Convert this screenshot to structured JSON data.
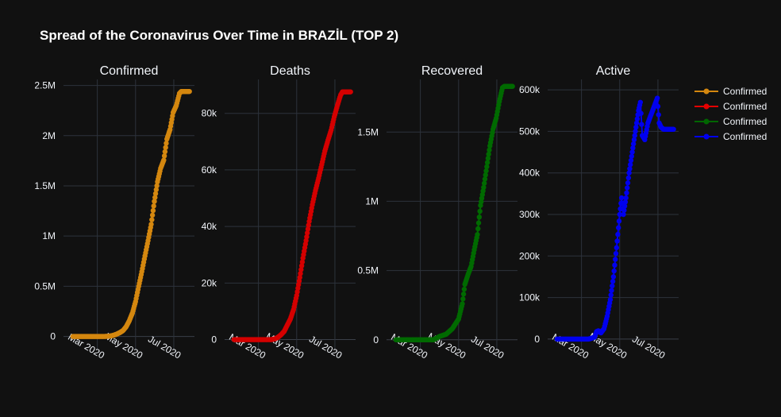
{
  "title": "Spread of the Coronavirus Over Time in BRAZİL (TOP 2)",
  "legend": {
    "placement": "top-right",
    "entries": [
      {
        "label": "Confirmed",
        "color": "#d4870f"
      },
      {
        "label": "Confirmed",
        "color": "#e50000"
      },
      {
        "label": "Confirmed",
        "color": "#006600"
      },
      {
        "label": "Confirmed",
        "color": "#0000ee"
      }
    ]
  },
  "chart_data": [
    {
      "type": "line",
      "title": "Confirmed",
      "color": "#d4870f",
      "x_range": [
        "2020-01-07",
        "2020-08-03"
      ],
      "ylim": [
        -130000,
        2560000
      ],
      "x_ticks": [
        {
          "date": "2020-03-01",
          "label": "Mar 2020"
        },
        {
          "date": "2020-05-01",
          "label": "May 2020"
        },
        {
          "date": "2020-07-01",
          "label": "Jul 2020"
        }
      ],
      "y_ticks": [
        {
          "value": 0,
          "label": "0"
        },
        {
          "value": 500000,
          "label": "0.5M"
        },
        {
          "value": 1000000,
          "label": "1M"
        },
        {
          "value": 1500000,
          "label": "1.5M"
        },
        {
          "value": 2000000,
          "label": "2M"
        },
        {
          "value": 2500000,
          "label": "2.5M"
        }
      ],
      "grid": true,
      "series": [
        {
          "x_start": "2020-01-22",
          "x_end": "2020-07-26",
          "points": [
            [
              0,
              0
            ],
            [
              40,
              0
            ],
            [
              45,
              4
            ],
            [
              50,
              200
            ],
            [
              55,
              900
            ],
            [
              60,
              4600
            ],
            [
              65,
              12000
            ],
            [
              70,
              23400
            ],
            [
              75,
              38600
            ],
            [
              80,
              58500
            ],
            [
              85,
              96600
            ],
            [
              90,
              156000
            ],
            [
              95,
              233000
            ],
            [
              100,
              347000
            ],
            [
              105,
              499000
            ],
            [
              110,
              645000
            ],
            [
              115,
              802000
            ],
            [
              120,
              955000
            ],
            [
              125,
              1117000
            ],
            [
              130,
              1345000
            ],
            [
              135,
              1540000
            ],
            [
              140,
              1674000
            ],
            [
              145,
              1756000
            ],
            [
              150,
              1966000
            ],
            [
              155,
              2060000
            ],
            [
              160,
              2231000
            ],
            [
              165,
              2300000
            ],
            [
              170,
              2420000
            ],
            [
              173,
              2440000
            ],
            [
              186,
              2440000
            ]
          ]
        }
      ]
    },
    {
      "type": "line",
      "title": "Deaths",
      "color": "#d40000",
      "x_range": [
        "2020-01-07",
        "2020-08-03"
      ],
      "ylim": [
        -3500,
        92000
      ],
      "x_ticks": [
        {
          "date": "2020-03-01",
          "label": "Mar 2020"
        },
        {
          "date": "2020-05-01",
          "label": "May 2020"
        },
        {
          "date": "2020-07-01",
          "label": "Jul 2020"
        }
      ],
      "y_ticks": [
        {
          "value": 0,
          "label": "0"
        },
        {
          "value": 20000,
          "label": "20k"
        },
        {
          "value": 40000,
          "label": "40k"
        },
        {
          "value": 60000,
          "label": "60k"
        },
        {
          "value": 80000,
          "label": "80k"
        }
      ],
      "grid": true,
      "series": [
        {
          "x_start": "2020-01-22",
          "x_end": "2020-07-26",
          "points": [
            [
              0,
              0
            ],
            [
              55,
              0
            ],
            [
              60,
              11
            ],
            [
              65,
              250
            ],
            [
              70,
              800
            ],
            [
              75,
              1700
            ],
            [
              80,
              2900
            ],
            [
              85,
              5100
            ],
            [
              90,
              7300
            ],
            [
              95,
              10600
            ],
            [
              100,
              15600
            ],
            [
              105,
              22000
            ],
            [
              110,
              28800
            ],
            [
              115,
              35000
            ],
            [
              120,
              41800
            ],
            [
              125,
              47700
            ],
            [
              130,
              52700
            ],
            [
              135,
              57100
            ],
            [
              140,
              61900
            ],
            [
              145,
              66700
            ],
            [
              150,
              70500
            ],
            [
              155,
              74100
            ],
            [
              160,
              78800
            ],
            [
              165,
              82800
            ],
            [
              170,
              86400
            ],
            [
              173,
              87600
            ],
            [
              186,
              87600
            ]
          ]
        }
      ]
    },
    {
      "type": "line",
      "title": "Recovered",
      "color": "#006a00",
      "x_range": [
        "2020-01-07",
        "2020-08-03"
      ],
      "ylim": [
        -70000,
        1880000
      ],
      "x_ticks": [
        {
          "date": "2020-03-01",
          "label": "Mar 2020"
        },
        {
          "date": "2020-05-01",
          "label": "May 2020"
        },
        {
          "date": "2020-07-01",
          "label": "Jul 2020"
        }
      ],
      "y_ticks": [
        {
          "value": 0,
          "label": "0"
        },
        {
          "value": 500000,
          "label": "0.5M"
        },
        {
          "value": 1000000,
          "label": "1M"
        },
        {
          "value": 1500000,
          "label": "1.5M"
        }
      ],
      "grid": true,
      "series": [
        {
          "x_start": "2020-01-22",
          "x_end": "2020-07-26",
          "points": [
            [
              0,
              0
            ],
            [
              60,
              0
            ],
            [
              70,
              25000
            ],
            [
              80,
              40000
            ],
            [
              90,
              80000
            ],
            [
              100,
              150000
            ],
            [
              106,
              260000
            ],
            [
              110,
              400000
            ],
            [
              115,
              470000
            ],
            [
              120,
              530000
            ],
            [
              125,
              650000
            ],
            [
              130,
              760000
            ],
            [
              135,
              970000
            ],
            [
              140,
              1100000
            ],
            [
              145,
              1250000
            ],
            [
              150,
              1400000
            ],
            [
              155,
              1520000
            ],
            [
              160,
              1600000
            ],
            [
              165,
              1720000
            ],
            [
              170,
              1820000
            ],
            [
              173,
              1830000
            ],
            [
              186,
              1830000
            ]
          ]
        }
      ]
    },
    {
      "type": "line",
      "title": "Active",
      "color": "#0000ee",
      "x_range": [
        "2020-01-07",
        "2020-08-03"
      ],
      "ylim": [
        -25000,
        625000
      ],
      "x_ticks": [
        {
          "date": "2020-03-01",
          "label": "Mar 2020"
        },
        {
          "date": "2020-05-01",
          "label": "May 2020"
        },
        {
          "date": "2020-07-01",
          "label": "Jul 2020"
        }
      ],
      "y_ticks": [
        {
          "value": 0,
          "label": "0"
        },
        {
          "value": 100000,
          "label": "100k"
        },
        {
          "value": 200000,
          "label": "200k"
        },
        {
          "value": 300000,
          "label": "300k"
        },
        {
          "value": 400000,
          "label": "400k"
        },
        {
          "value": 500000,
          "label": "500k"
        },
        {
          "value": 600000,
          "label": "600k"
        }
      ],
      "grid": true,
      "series": [
        {
          "x_start": "2020-01-22",
          "x_end": "2020-07-26",
          "points": [
            [
              0,
              0
            ],
            [
              50,
              0
            ],
            [
              55,
              2000
            ],
            [
              60,
              5000
            ],
            [
              63,
              18000
            ],
            [
              66,
              20000
            ],
            [
              70,
              15000
            ],
            [
              75,
              25000
            ],
            [
              80,
              55000
            ],
            [
              85,
              95000
            ],
            [
              90,
              150000
            ],
            [
              95,
              220000
            ],
            [
              100,
              300000
            ],
            [
              103,
              340000
            ],
            [
              106,
              300000
            ],
            [
              110,
              340000
            ],
            [
              115,
              400000
            ],
            [
              120,
              450000
            ],
            [
              125,
              500000
            ],
            [
              130,
              550000
            ],
            [
              133,
              570000
            ],
            [
              136,
              490000
            ],
            [
              140,
              480000
            ],
            [
              145,
              520000
            ],
            [
              150,
              540000
            ],
            [
              155,
              560000
            ],
            [
              160,
              580000
            ],
            [
              163,
              520000
            ],
            [
              166,
              510000
            ],
            [
              170,
              505000
            ],
            [
              186,
              505000
            ]
          ]
        }
      ]
    }
  ]
}
